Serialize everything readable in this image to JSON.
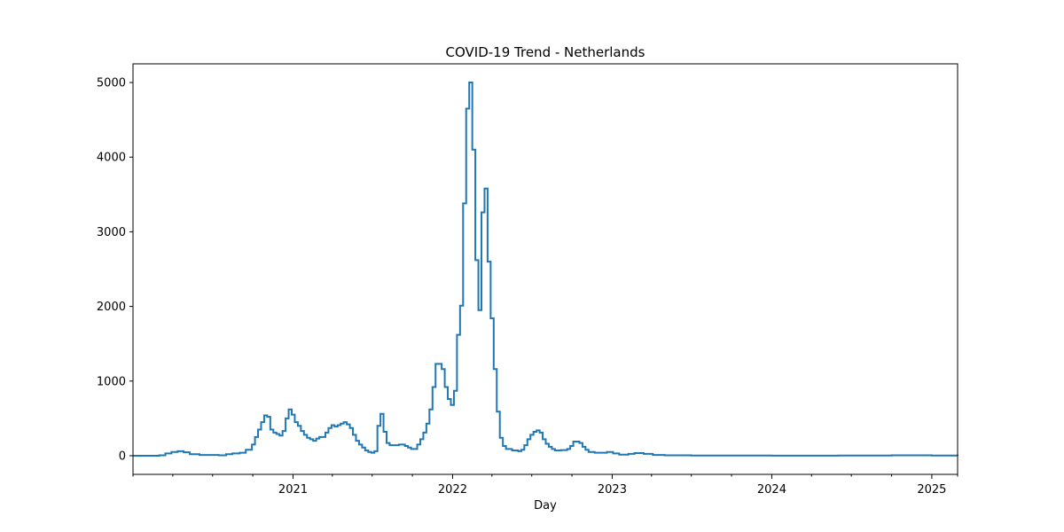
{
  "chart_data": {
    "type": "line",
    "title": "COVID-19 Trend - Netherlands",
    "xlabel": "Day",
    "ylabel": "",
    "x_axis_type": "date",
    "xlim": [
      "2020-01-01",
      "2025-03-01"
    ],
    "ylim": [
      -250,
      5250
    ],
    "y_ticks": [
      0,
      1000,
      2000,
      3000,
      4000,
      5000
    ],
    "x_ticks": [
      {
        "date": "2021-01-01",
        "label": "2021"
      },
      {
        "date": "2022-01-01",
        "label": "2022"
      },
      {
        "date": "2023-01-01",
        "label": "2023"
      },
      {
        "date": "2024-01-01",
        "label": "2024"
      },
      {
        "date": "2025-01-01",
        "label": "2025"
      }
    ],
    "x_minor_ticks": [
      "2020-01-01",
      "2020-04-01",
      "2020-07-01",
      "2020-10-01",
      "2021-04-01",
      "2021-07-01",
      "2021-10-01",
      "2022-04-01",
      "2022-07-01",
      "2022-10-01",
      "2023-04-01",
      "2023-07-01",
      "2023-10-01",
      "2024-04-01",
      "2024-07-01",
      "2024-10-01",
      "2025-03-01"
    ],
    "grid": false,
    "line_color": "#1f77b4",
    "series": [
      {
        "step": "post",
        "points": [
          [
            "2020-01-01",
            0
          ],
          [
            "2020-03-01",
            5
          ],
          [
            "2020-03-15",
            30
          ],
          [
            "2020-03-29",
            50
          ],
          [
            "2020-04-12",
            60
          ],
          [
            "2020-04-26",
            45
          ],
          [
            "2020-05-10",
            20
          ],
          [
            "2020-06-01",
            10
          ],
          [
            "2020-07-15",
            5
          ],
          [
            "2020-08-01",
            20
          ],
          [
            "2020-08-15",
            30
          ],
          [
            "2020-09-01",
            40
          ],
          [
            "2020-09-15",
            80
          ],
          [
            "2020-09-29",
            150
          ],
          [
            "2020-10-06",
            250
          ],
          [
            "2020-10-13",
            350
          ],
          [
            "2020-10-20",
            450
          ],
          [
            "2020-10-27",
            540
          ],
          [
            "2020-11-03",
            520
          ],
          [
            "2020-11-10",
            350
          ],
          [
            "2020-11-17",
            310
          ],
          [
            "2020-11-24",
            290
          ],
          [
            "2020-12-01",
            270
          ],
          [
            "2020-12-08",
            330
          ],
          [
            "2020-12-15",
            500
          ],
          [
            "2020-12-22",
            620
          ],
          [
            "2020-12-29",
            550
          ],
          [
            "2021-01-05",
            450
          ],
          [
            "2021-01-12",
            400
          ],
          [
            "2021-01-19",
            330
          ],
          [
            "2021-01-26",
            280
          ],
          [
            "2021-02-02",
            240
          ],
          [
            "2021-02-09",
            220
          ],
          [
            "2021-02-16",
            200
          ],
          [
            "2021-02-23",
            230
          ],
          [
            "2021-03-02",
            250
          ],
          [
            "2021-03-16",
            310
          ],
          [
            "2021-03-23",
            370
          ],
          [
            "2021-03-30",
            410
          ],
          [
            "2021-04-06",
            390
          ],
          [
            "2021-04-13",
            410
          ],
          [
            "2021-04-20",
            430
          ],
          [
            "2021-04-27",
            450
          ],
          [
            "2021-05-04",
            420
          ],
          [
            "2021-05-11",
            370
          ],
          [
            "2021-05-18",
            280
          ],
          [
            "2021-05-25",
            200
          ],
          [
            "2021-06-01",
            150
          ],
          [
            "2021-06-08",
            110
          ],
          [
            "2021-06-15",
            70
          ],
          [
            "2021-06-22",
            50
          ],
          [
            "2021-06-29",
            40
          ],
          [
            "2021-07-06",
            60
          ],
          [
            "2021-07-13",
            400
          ],
          [
            "2021-07-20",
            560
          ],
          [
            "2021-07-27",
            320
          ],
          [
            "2021-08-03",
            170
          ],
          [
            "2021-08-10",
            140
          ],
          [
            "2021-08-31",
            150
          ],
          [
            "2021-09-14",
            130
          ],
          [
            "2021-09-21",
            110
          ],
          [
            "2021-09-28",
            90
          ],
          [
            "2021-10-12",
            150
          ],
          [
            "2021-10-19",
            220
          ],
          [
            "2021-10-26",
            310
          ],
          [
            "2021-11-02",
            430
          ],
          [
            "2021-11-09",
            620
          ],
          [
            "2021-11-16",
            920
          ],
          [
            "2021-11-23",
            1230
          ],
          [
            "2021-12-07",
            1160
          ],
          [
            "2021-12-14",
            920
          ],
          [
            "2021-12-21",
            760
          ],
          [
            "2021-12-28",
            680
          ],
          [
            "2022-01-04",
            870
          ],
          [
            "2022-01-11",
            1620
          ],
          [
            "2022-01-18",
            2010
          ],
          [
            "2022-01-25",
            3380
          ],
          [
            "2022-02-01",
            4650
          ],
          [
            "2022-02-08",
            5000
          ],
          [
            "2022-02-15",
            4100
          ],
          [
            "2022-02-22",
            2620
          ],
          [
            "2022-03-01",
            1950
          ],
          [
            "2022-03-08",
            3260
          ],
          [
            "2022-03-15",
            3580
          ],
          [
            "2022-03-22",
            2600
          ],
          [
            "2022-03-29",
            1840
          ],
          [
            "2022-04-05",
            1160
          ],
          [
            "2022-04-12",
            590
          ],
          [
            "2022-04-19",
            240
          ],
          [
            "2022-04-26",
            130
          ],
          [
            "2022-05-03",
            90
          ],
          [
            "2022-05-17",
            70
          ],
          [
            "2022-05-31",
            60
          ],
          [
            "2022-06-07",
            80
          ],
          [
            "2022-06-14",
            140
          ],
          [
            "2022-06-21",
            220
          ],
          [
            "2022-06-28",
            280
          ],
          [
            "2022-07-05",
            320
          ],
          [
            "2022-07-12",
            340
          ],
          [
            "2022-07-19",
            310
          ],
          [
            "2022-07-26",
            220
          ],
          [
            "2022-08-02",
            160
          ],
          [
            "2022-08-09",
            120
          ],
          [
            "2022-08-16",
            90
          ],
          [
            "2022-08-23",
            70
          ],
          [
            "2022-09-06",
            75
          ],
          [
            "2022-09-20",
            90
          ],
          [
            "2022-09-27",
            130
          ],
          [
            "2022-10-04",
            190
          ],
          [
            "2022-10-18",
            170
          ],
          [
            "2022-10-25",
            120
          ],
          [
            "2022-11-01",
            80
          ],
          [
            "2022-11-08",
            50
          ],
          [
            "2022-11-22",
            40
          ],
          [
            "2022-12-20",
            50
          ],
          [
            "2023-01-03",
            30
          ],
          [
            "2023-01-17",
            15
          ],
          [
            "2023-02-07",
            25
          ],
          [
            "2023-02-21",
            35
          ],
          [
            "2023-03-14",
            25
          ],
          [
            "2023-04-04",
            10
          ],
          [
            "2023-05-01",
            5
          ],
          [
            "2023-07-01",
            2
          ],
          [
            "2024-01-01",
            1
          ],
          [
            "2024-06-01",
            3
          ],
          [
            "2024-10-01",
            5
          ],
          [
            "2025-01-01",
            2
          ],
          [
            "2025-03-01",
            1
          ]
        ]
      }
    ]
  }
}
